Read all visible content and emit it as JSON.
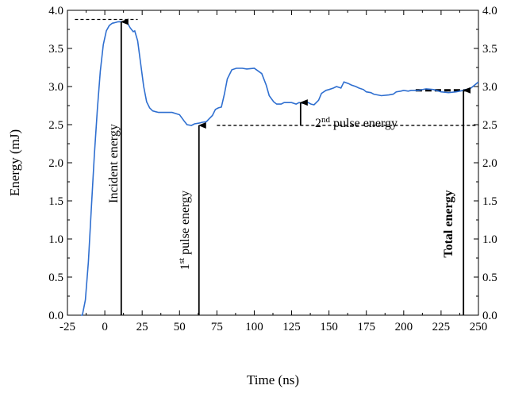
{
  "chart_data": {
    "type": "line",
    "title": "",
    "xlabel": "Time (ns)",
    "ylabel": "Energy (mJ)",
    "xlim": [
      -25,
      250
    ],
    "ylim": [
      0.0,
      4.0
    ],
    "x_ticks": [
      -25,
      0,
      25,
      50,
      75,
      100,
      125,
      150,
      175,
      200,
      225,
      250
    ],
    "x_tick_labels": [
      "-25",
      "0",
      "25",
      "50",
      "75",
      "100",
      "125",
      "150",
      "175",
      "200",
      "225",
      "250"
    ],
    "y_ticks": [
      0.0,
      0.5,
      1.0,
      1.5,
      2.0,
      2.5,
      3.0,
      3.5,
      4.0
    ],
    "y_tick_labels": [
      "0.0",
      "0.5",
      "1.0",
      "1.5",
      "2.0",
      "2.5",
      "3.0",
      "3.5",
      "4.0"
    ],
    "right_axis_labels": true,
    "grid": false,
    "line_color": "#2f6fd0",
    "series": [
      {
        "x": [
          -16,
          -15,
          -13,
          -11,
          -9,
          -7,
          -5,
          -3,
          -1,
          1,
          3,
          5,
          7,
          9,
          11,
          13,
          15,
          17,
          19,
          20,
          22,
          24,
          26,
          28,
          30,
          32,
          34,
          36,
          40,
          45,
          50,
          53,
          55,
          58,
          60,
          63,
          65,
          68,
          70,
          72,
          74,
          76,
          78,
          80,
          82,
          85,
          88,
          92,
          95,
          100,
          105,
          108,
          110,
          113,
          115,
          118,
          120,
          123,
          125,
          128,
          130,
          133,
          135,
          138,
          140,
          143,
          145,
          148,
          150,
          153,
          155,
          158,
          160,
          163,
          165,
          168,
          170,
          173,
          175,
          178,
          180,
          185,
          190,
          193,
          195,
          198,
          200,
          203,
          205,
          210,
          215,
          220,
          225,
          230,
          235,
          240,
          245,
          250
        ],
        "y": [
          0.0,
          0.0,
          0.2,
          0.7,
          1.4,
          2.1,
          2.7,
          3.2,
          3.55,
          3.73,
          3.8,
          3.83,
          3.84,
          3.85,
          3.85,
          3.85,
          3.84,
          3.77,
          3.72,
          3.73,
          3.6,
          3.3,
          3.0,
          2.8,
          2.72,
          2.68,
          2.67,
          2.66,
          2.66,
          2.66,
          2.63,
          2.55,
          2.5,
          2.49,
          2.51,
          2.52,
          2.53,
          2.54,
          2.58,
          2.62,
          2.7,
          2.72,
          2.73,
          2.9,
          3.1,
          3.22,
          3.24,
          3.24,
          3.23,
          3.24,
          3.17,
          3.02,
          2.88,
          2.8,
          2.77,
          2.77,
          2.79,
          2.79,
          2.79,
          2.77,
          2.79,
          2.78,
          2.8,
          2.77,
          2.76,
          2.82,
          2.91,
          2.95,
          2.96,
          2.98,
          3.0,
          2.98,
          3.06,
          3.04,
          3.02,
          3.0,
          2.98,
          2.96,
          2.93,
          2.92,
          2.9,
          2.88,
          2.89,
          2.9,
          2.93,
          2.94,
          2.95,
          2.94,
          2.95,
          2.95,
          2.97,
          2.96,
          2.93,
          2.92,
          2.93,
          2.95,
          2.98,
          3.06
        ]
      }
    ],
    "reference_lines": [
      {
        "x1": -20,
        "x2": 22,
        "y": 3.88,
        "style": "dashed"
      },
      {
        "x1": 75,
        "x2": 250,
        "y": 2.49,
        "style": "dashed"
      },
      {
        "x1": 208,
        "x2": 246,
        "y": 2.95,
        "style": "dashed-bold"
      }
    ],
    "arrows": [
      {
        "x": 11,
        "y_from": 0.0,
        "y_to": 3.85
      },
      {
        "x": 63,
        "y_from": 0.0,
        "y_to": 2.49
      },
      {
        "x": 131,
        "y_from": 2.49,
        "y_to": 2.79
      },
      {
        "x": 240,
        "y_from": 0.0,
        "y_to": 2.95
      }
    ],
    "annotations": {
      "incident": "Incident energy",
      "first_num": "1",
      "first_sup": "st",
      "first_rest": " pulse energy",
      "second_num": "2",
      "second_sup": "nd",
      "second_rest": " pulse energy",
      "total": "Total energy"
    }
  }
}
